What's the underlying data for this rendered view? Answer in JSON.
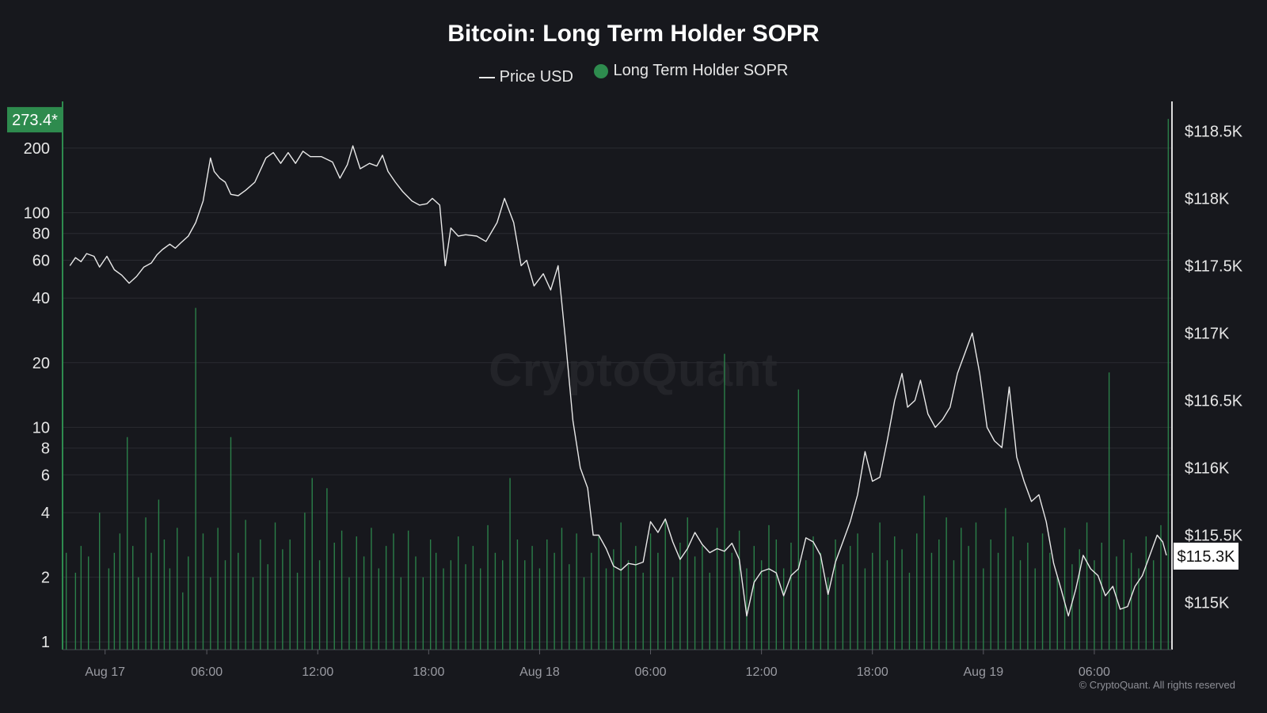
{
  "chart_data": {
    "type": "line+bar",
    "title": "Bitcoin: Long Term Holder SOPR",
    "legend": [
      {
        "name": "Price USD",
        "marker": "line",
        "color": "#e8e8e8"
      },
      {
        "name": "Long Term Holder SOPR",
        "marker": "dot",
        "color": "#2e8b4e"
      }
    ],
    "x_ticks": [
      {
        "label": "Aug 17",
        "t": 0.5
      },
      {
        "label": "06:00",
        "t": 6
      },
      {
        "label": "12:00",
        "t": 12
      },
      {
        "label": "18:00",
        "t": 18
      },
      {
        "label": "Aug 18",
        "t": 24
      },
      {
        "label": "06:00",
        "t": 30
      },
      {
        "label": "12:00",
        "t": 36
      },
      {
        "label": "18:00",
        "t": 42
      },
      {
        "label": "Aug 19",
        "t": 48
      },
      {
        "label": "06:00",
        "t": 54
      }
    ],
    "x_range_hours": [
      -1.8,
      58.2
    ],
    "left_axis": {
      "scale": "log",
      "range": [
        0.92,
        330
      ],
      "ticks": [
        "1",
        "2",
        "4",
        "6",
        "8",
        "10",
        "20",
        "40",
        "60",
        "80",
        "100",
        "200"
      ]
    },
    "right_axis": {
      "scale": "linear",
      "range": [
        114.65,
        118.72
      ],
      "ticks": [
        {
          "v": 115.0,
          "label": "$115K"
        },
        {
          "v": 115.5,
          "label": "$115.5K"
        },
        {
          "v": 116.0,
          "label": "$116K"
        },
        {
          "v": 116.5,
          "label": "$116.5K"
        },
        {
          "v": 117.0,
          "label": "$117K"
        },
        {
          "v": 117.5,
          "label": "$117.5K"
        },
        {
          "v": 118.0,
          "label": "$118K"
        },
        {
          "v": 118.5,
          "label": "$118.5K"
        }
      ]
    },
    "current_sopr_label": "273.4*",
    "current_price_label": "$115.3K",
    "price_usd_k": [
      [
        -1.4,
        117.5
      ],
      [
        -1.1,
        117.56
      ],
      [
        -0.8,
        117.53
      ],
      [
        -0.5,
        117.59
      ],
      [
        -0.1,
        117.57
      ],
      [
        0.2,
        117.49
      ],
      [
        0.6,
        117.57
      ],
      [
        1.0,
        117.47
      ],
      [
        1.4,
        117.43
      ],
      [
        1.8,
        117.37
      ],
      [
        2.2,
        117.42
      ],
      [
        2.6,
        117.49
      ],
      [
        3.0,
        117.52
      ],
      [
        3.3,
        117.58
      ],
      [
        3.6,
        117.62
      ],
      [
        4.0,
        117.66
      ],
      [
        4.3,
        117.63
      ],
      [
        4.6,
        117.67
      ],
      [
        5.0,
        117.72
      ],
      [
        5.4,
        117.82
      ],
      [
        5.8,
        117.98
      ],
      [
        6.2,
        118.3
      ],
      [
        6.4,
        118.2
      ],
      [
        6.7,
        118.15
      ],
      [
        7.0,
        118.12
      ],
      [
        7.3,
        118.03
      ],
      [
        7.7,
        118.02
      ],
      [
        8.1,
        118.06
      ],
      [
        8.6,
        118.12
      ],
      [
        9.2,
        118.3
      ],
      [
        9.6,
        118.34
      ],
      [
        10.0,
        118.26
      ],
      [
        10.4,
        118.34
      ],
      [
        10.8,
        118.26
      ],
      [
        11.2,
        118.35
      ],
      [
        11.6,
        118.31
      ],
      [
        12.2,
        118.31
      ],
      [
        12.8,
        118.27
      ],
      [
        13.2,
        118.15
      ],
      [
        13.6,
        118.25
      ],
      [
        13.9,
        118.39
      ],
      [
        14.3,
        118.22
      ],
      [
        14.8,
        118.26
      ],
      [
        15.2,
        118.24
      ],
      [
        15.5,
        118.32
      ],
      [
        15.8,
        118.2
      ],
      [
        16.2,
        118.12
      ],
      [
        16.6,
        118.05
      ],
      [
        17.1,
        117.98
      ],
      [
        17.5,
        117.95
      ],
      [
        17.9,
        117.96
      ],
      [
        18.2,
        118.0
      ],
      [
        18.6,
        117.95
      ],
      [
        18.9,
        117.5
      ],
      [
        19.2,
        117.78
      ],
      [
        19.6,
        117.72
      ],
      [
        20.0,
        117.73
      ],
      [
        20.6,
        117.72
      ],
      [
        21.1,
        117.68
      ],
      [
        21.7,
        117.82
      ],
      [
        22.1,
        118.0
      ],
      [
        22.6,
        117.82
      ],
      [
        23.0,
        117.5
      ],
      [
        23.3,
        117.54
      ],
      [
        23.7,
        117.35
      ],
      [
        24.2,
        117.44
      ],
      [
        24.6,
        117.32
      ],
      [
        25.0,
        117.5
      ],
      [
        25.4,
        116.95
      ],
      [
        25.8,
        116.35
      ],
      [
        26.2,
        116.0
      ],
      [
        26.6,
        115.85
      ],
      [
        26.9,
        115.5
      ],
      [
        27.2,
        115.5
      ],
      [
        27.6,
        115.4
      ],
      [
        28.0,
        115.27
      ],
      [
        28.4,
        115.24
      ],
      [
        28.8,
        115.29
      ],
      [
        29.2,
        115.28
      ],
      [
        29.6,
        115.3
      ],
      [
        30.0,
        115.6
      ],
      [
        30.4,
        115.52
      ],
      [
        30.8,
        115.62
      ],
      [
        31.2,
        115.45
      ],
      [
        31.6,
        115.32
      ],
      [
        32.0,
        115.4
      ],
      [
        32.4,
        115.52
      ],
      [
        32.8,
        115.43
      ],
      [
        33.2,
        115.37
      ],
      [
        33.6,
        115.4
      ],
      [
        34.0,
        115.38
      ],
      [
        34.4,
        115.44
      ],
      [
        34.8,
        115.32
      ],
      [
        35.2,
        114.9
      ],
      [
        35.6,
        115.15
      ],
      [
        36.0,
        115.23
      ],
      [
        36.4,
        115.25
      ],
      [
        36.8,
        115.22
      ],
      [
        37.2,
        115.05
      ],
      [
        37.6,
        115.2
      ],
      [
        38.0,
        115.25
      ],
      [
        38.4,
        115.48
      ],
      [
        38.8,
        115.45
      ],
      [
        39.2,
        115.35
      ],
      [
        39.6,
        115.06
      ],
      [
        40.0,
        115.3
      ],
      [
        40.4,
        115.45
      ],
      [
        40.8,
        115.6
      ],
      [
        41.2,
        115.8
      ],
      [
        41.6,
        116.12
      ],
      [
        42.0,
        115.9
      ],
      [
        42.4,
        115.93
      ],
      [
        42.8,
        116.2
      ],
      [
        43.2,
        116.5
      ],
      [
        43.6,
        116.7
      ],
      [
        43.9,
        116.45
      ],
      [
        44.3,
        116.5
      ],
      [
        44.6,
        116.65
      ],
      [
        45.0,
        116.4
      ],
      [
        45.4,
        116.3
      ],
      [
        45.8,
        116.36
      ],
      [
        46.2,
        116.45
      ],
      [
        46.6,
        116.7
      ],
      [
        47.0,
        116.85
      ],
      [
        47.4,
        117.0
      ],
      [
        47.8,
        116.7
      ],
      [
        48.2,
        116.3
      ],
      [
        48.6,
        116.2
      ],
      [
        49.0,
        116.15
      ],
      [
        49.4,
        116.6
      ],
      [
        49.8,
        116.08
      ],
      [
        50.2,
        115.9
      ],
      [
        50.6,
        115.75
      ],
      [
        51.0,
        115.8
      ],
      [
        51.4,
        115.6
      ],
      [
        51.8,
        115.29
      ],
      [
        52.2,
        115.1
      ],
      [
        52.6,
        114.9
      ],
      [
        53.0,
        115.1
      ],
      [
        53.4,
        115.35
      ],
      [
        53.8,
        115.25
      ],
      [
        54.2,
        115.2
      ],
      [
        54.6,
        115.05
      ],
      [
        55.0,
        115.12
      ],
      [
        55.4,
        114.95
      ],
      [
        55.8,
        114.97
      ],
      [
        56.2,
        115.12
      ],
      [
        56.6,
        115.2
      ],
      [
        57.0,
        115.35
      ],
      [
        57.4,
        115.5
      ],
      [
        57.7,
        115.45
      ],
      [
        57.9,
        115.35
      ]
    ],
    "sopr_spikes": [
      [
        -1.6,
        2.6
      ],
      [
        -1.1,
        2.1
      ],
      [
        -0.8,
        2.8
      ],
      [
        -0.4,
        2.5
      ],
      [
        0.2,
        4.0
      ],
      [
        0.7,
        2.2
      ],
      [
        1.0,
        2.6
      ],
      [
        1.3,
        3.2
      ],
      [
        1.7,
        9.0
      ],
      [
        2.0,
        2.8
      ],
      [
        2.3,
        2.0
      ],
      [
        2.7,
        3.8
      ],
      [
        3.0,
        2.6
      ],
      [
        3.4,
        4.6
      ],
      [
        3.7,
        3.0
      ],
      [
        4.0,
        2.2
      ],
      [
        4.4,
        3.4
      ],
      [
        4.7,
        1.7
      ],
      [
        5.0,
        2.5
      ],
      [
        5.4,
        36.0
      ],
      [
        5.8,
        3.2
      ],
      [
        6.2,
        2.0
      ],
      [
        6.6,
        3.4
      ],
      [
        7.0,
        2.4
      ],
      [
        7.3,
        9.0
      ],
      [
        7.7,
        2.6
      ],
      [
        8.1,
        3.7
      ],
      [
        8.5,
        2.0
      ],
      [
        8.9,
        3.0
      ],
      [
        9.3,
        2.3
      ],
      [
        9.7,
        3.6
      ],
      [
        10.1,
        2.7
      ],
      [
        10.5,
        3.0
      ],
      [
        10.9,
        2.1
      ],
      [
        11.3,
        4.0
      ],
      [
        11.7,
        5.8
      ],
      [
        12.1,
        2.4
      ],
      [
        12.5,
        5.2
      ],
      [
        12.9,
        2.9
      ],
      [
        13.3,
        3.3
      ],
      [
        13.7,
        2.0
      ],
      [
        14.1,
        3.1
      ],
      [
        14.5,
        2.5
      ],
      [
        14.9,
        3.4
      ],
      [
        15.3,
        2.2
      ],
      [
        15.7,
        2.8
      ],
      [
        16.1,
        3.2
      ],
      [
        16.5,
        2.0
      ],
      [
        16.9,
        3.3
      ],
      [
        17.3,
        2.5
      ],
      [
        17.7,
        2.0
      ],
      [
        18.1,
        3.0
      ],
      [
        18.4,
        2.6
      ],
      [
        18.8,
        2.2
      ],
      [
        19.2,
        2.4
      ],
      [
        19.6,
        3.1
      ],
      [
        20.0,
        2.3
      ],
      [
        20.4,
        2.8
      ],
      [
        20.8,
        2.2
      ],
      [
        21.2,
        3.5
      ],
      [
        21.6,
        2.6
      ],
      [
        22.0,
        2.4
      ],
      [
        22.4,
        5.8
      ],
      [
        22.8,
        3.0
      ],
      [
        23.2,
        2.4
      ],
      [
        23.6,
        2.8
      ],
      [
        24.0,
        2.2
      ],
      [
        24.4,
        3.0
      ],
      [
        24.8,
        2.6
      ],
      [
        25.2,
        3.4
      ],
      [
        25.6,
        2.3
      ],
      [
        26.0,
        3.2
      ],
      [
        26.4,
        2.0
      ],
      [
        26.8,
        2.6
      ],
      [
        27.2,
        3.1
      ],
      [
        27.6,
        2.2
      ],
      [
        28.0,
        2.7
      ],
      [
        28.4,
        3.6
      ],
      [
        28.8,
        2.4
      ],
      [
        29.2,
        2.8
      ],
      [
        29.6,
        2.1
      ],
      [
        30.0,
        3.2
      ],
      [
        30.4,
        2.6
      ],
      [
        30.8,
        3.7
      ],
      [
        31.2,
        2.0
      ],
      [
        31.6,
        2.9
      ],
      [
        32.0,
        3.8
      ],
      [
        32.4,
        2.5
      ],
      [
        32.8,
        2.8
      ],
      [
        33.2,
        2.1
      ],
      [
        33.6,
        3.4
      ],
      [
        34.0,
        22.0
      ],
      [
        34.4,
        2.6
      ],
      [
        34.8,
        3.3
      ],
      [
        35.2,
        2.2
      ],
      [
        35.6,
        2.8
      ],
      [
        36.0,
        2.4
      ],
      [
        36.4,
        3.5
      ],
      [
        36.8,
        3.0
      ],
      [
        37.2,
        2.2
      ],
      [
        37.6,
        2.9
      ],
      [
        38.0,
        15.0
      ],
      [
        38.4,
        2.4
      ],
      [
        38.8,
        3.1
      ],
      [
        39.2,
        2.6
      ],
      [
        39.6,
        2.0
      ],
      [
        40.0,
        3.0
      ],
      [
        40.4,
        2.3
      ],
      [
        40.8,
        2.8
      ],
      [
        41.2,
        3.2
      ],
      [
        41.6,
        2.2
      ],
      [
        42.0,
        2.6
      ],
      [
        42.4,
        3.6
      ],
      [
        42.8,
        2.4
      ],
      [
        43.2,
        3.1
      ],
      [
        43.6,
        2.7
      ],
      [
        44.0,
        2.1
      ],
      [
        44.4,
        3.2
      ],
      [
        44.8,
        4.8
      ],
      [
        45.2,
        2.6
      ],
      [
        45.6,
        3.0
      ],
      [
        46.0,
        3.8
      ],
      [
        46.4,
        2.4
      ],
      [
        46.8,
        3.4
      ],
      [
        47.2,
        2.8
      ],
      [
        47.6,
        3.6
      ],
      [
        48.0,
        2.2
      ],
      [
        48.4,
        3.0
      ],
      [
        48.8,
        2.6
      ],
      [
        49.2,
        4.2
      ],
      [
        49.6,
        3.1
      ],
      [
        50.0,
        2.4
      ],
      [
        50.4,
        2.9
      ],
      [
        50.8,
        2.2
      ],
      [
        51.2,
        3.2
      ],
      [
        51.6,
        2.6
      ],
      [
        52.0,
        2.0
      ],
      [
        52.4,
        3.4
      ],
      [
        52.8,
        2.3
      ],
      [
        53.2,
        2.7
      ],
      [
        53.6,
        3.6
      ],
      [
        54.0,
        2.4
      ],
      [
        54.4,
        2.9
      ],
      [
        54.8,
        18.0
      ],
      [
        55.2,
        2.5
      ],
      [
        55.6,
        3.0
      ],
      [
        56.0,
        2.6
      ],
      [
        56.4,
        2.2
      ],
      [
        56.8,
        3.1
      ],
      [
        57.2,
        2.4
      ],
      [
        57.6,
        3.5
      ],
      [
        58.0,
        273.4
      ]
    ]
  },
  "watermark": "CryptoQuant",
  "copyright": "© CryptoQuant. All rights reserved",
  "colors": {
    "background": "#17181d",
    "sopr": "#2e8b4e",
    "price": "#e8e8e8",
    "grid": "#2a2b31"
  }
}
